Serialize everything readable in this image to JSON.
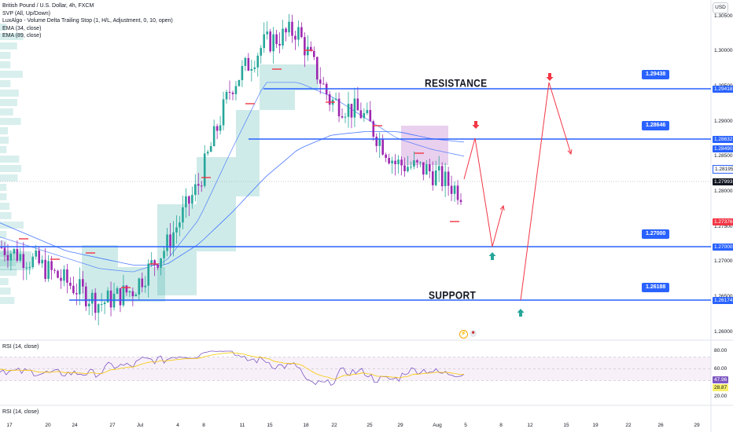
{
  "header": {
    "symbol_line": "British Pound / U.S. Dollar, 4h, FXCM",
    "indicators": [
      "SVP (All, Up/Down)",
      "LuxAlgo - Volume Delta Trailing Stop (1, H/L, Adjustment, 0, 10, open)",
      "EMA (34, close)",
      "EMA (89, close)"
    ],
    "currency_button": "USD"
  },
  "price_axis": {
    "ticks": [
      "1.30500",
      "1.30000",
      "1.29500",
      "1.29000",
      "1.28500",
      "1.28000",
      "1.27500",
      "1.27000",
      "1.26500",
      "1.26000"
    ],
    "labels": {
      "resistance_top": "1.29418",
      "mid_upper": "1.28632",
      "mid_lower": "1.28490",
      "ts": "1.28195",
      "current": "1.27993",
      "red": "1.27376",
      "support_mid": "1.27000",
      "support_low": "1.26174"
    }
  },
  "levels": {
    "resistance_callout": "1.29438",
    "mid_callout": "1.28646",
    "support_mid_callout": "1.27000",
    "support_low_callout": "1.26188"
  },
  "annotations": {
    "resistance": "RESISTANCE",
    "support": "SUPPORT"
  },
  "rsi": {
    "title": "RSI (14, close)",
    "title2": "RSI (14, close)",
    "ticks": [
      "80.00",
      "60.00",
      "20.00"
    ],
    "value_rsi": "47.96",
    "value_ma": "28.87"
  },
  "time_axis": [
    "17",
    "20",
    "24",
    "27",
    "Jul",
    "4",
    "8",
    "11",
    "15",
    "18",
    "22",
    "25",
    "29",
    "Aug",
    "5",
    "8",
    "12",
    "15",
    "19",
    "22",
    "26",
    "29"
  ],
  "colors": {
    "up": "#26a69a",
    "down": "#9c27b0",
    "level": "#2962ff",
    "arrow": "#f23645",
    "ema": "#2962ff"
  },
  "chart_data": {
    "type": "line",
    "title": "British Pound / U.S. Dollar, 4h, FXCM",
    "xlabel": "",
    "ylabel": "",
    "ylim": [
      1.2575,
      1.3065
    ],
    "x": [
      "17",
      "20",
      "24",
      "27",
      "Jul",
      "4",
      "8",
      "11",
      "15",
      "18",
      "22",
      "25",
      "29",
      "Aug",
      "5"
    ],
    "series": [
      {
        "name": "British Pound / U.S. Dollar",
        "values": [
          1.272,
          1.27,
          1.267,
          1.264,
          1.266,
          1.272,
          1.281,
          1.295,
          1.301,
          1.303,
          1.293,
          1.291,
          1.284,
          1.283,
          1.2799
        ]
      },
      {
        "name": "EMA (34, close)",
        "values": [
          1.2735,
          1.272,
          1.2705,
          1.269,
          1.2685,
          1.27,
          1.276,
          1.286,
          1.2955,
          1.2955,
          1.2935,
          1.2905,
          1.2875,
          1.286,
          1.285
        ]
      },
      {
        "name": "EMA (89, close)",
        "values": [
          1.2755,
          1.2735,
          1.2715,
          1.2705,
          1.2695,
          1.2695,
          1.2725,
          1.277,
          1.282,
          1.286,
          1.288,
          1.2885,
          1.2885,
          1.2875,
          1.287
        ]
      }
    ],
    "levels": [
      1.29418,
      1.28632,
      1.27,
      1.26174
    ],
    "projection": [
      1.27993,
      1.286,
      1.27,
      1.276
    ],
    "projection2": [
      1.26174,
      1.2942,
      1.284
    ]
  }
}
